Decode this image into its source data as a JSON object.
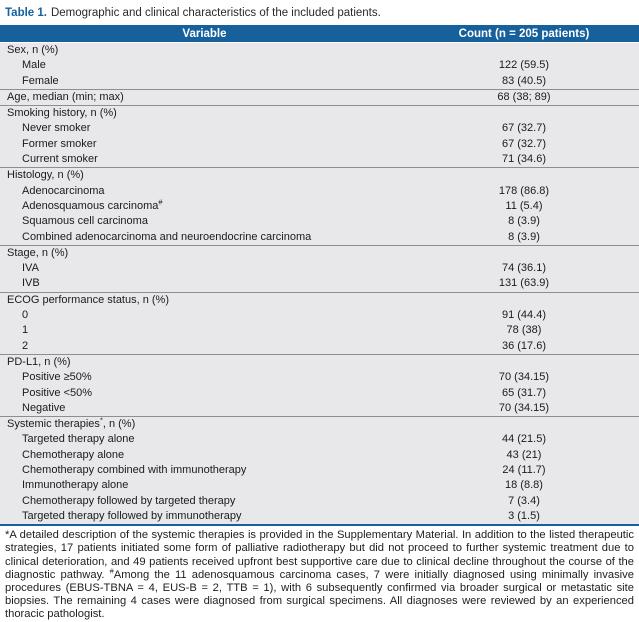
{
  "caption": {
    "label": "Table 1.",
    "text": "Demographic and clinical characteristics of the included patients."
  },
  "colors": {
    "header_bg": "#16609c",
    "caption_accent": "#16609c",
    "row_bg": "#e8e8ea",
    "divider": "#8e8e90",
    "table_bottom_border": "#16609c"
  },
  "table": {
    "columns": [
      "Variable",
      "Count (n = 205 patients)"
    ],
    "sections": [
      {
        "header": "Sex, n (%)",
        "value": "",
        "rows": [
          {
            "label": "Male",
            "value": "122 (59.5)"
          },
          {
            "label": "Female",
            "value": "83 (40.5)"
          }
        ]
      },
      {
        "header": "Age, median (min; max)",
        "value": "68 (38; 89)",
        "rows": []
      },
      {
        "header": "Smoking history, n (%)",
        "value": "",
        "rows": [
          {
            "label": "Never smoker",
            "value": "67 (32.7)"
          },
          {
            "label": "Former smoker",
            "value": "67 (32.7)"
          },
          {
            "label": "Current smoker",
            "value": "71 (34.6)"
          }
        ]
      },
      {
        "header": "Histology, n (%)",
        "value": "",
        "rows": [
          {
            "label": "Adenocarcinoma",
            "value": "178 (86.8)"
          },
          {
            "label": "Adenosquamous carcinoma",
            "sup": "#",
            "value": "11 (5.4)"
          },
          {
            "label": "Squamous cell carcinoma",
            "value": "8 (3.9)"
          },
          {
            "label": "Combined adenocarcinoma and neuroendocrine carcinoma",
            "value": "8 (3.9)"
          }
        ]
      },
      {
        "header": "Stage, n (%)",
        "value": "",
        "rows": [
          {
            "label": "IVA",
            "value": "74 (36.1)"
          },
          {
            "label": "IVB",
            "value": "131 (63.9)"
          }
        ]
      },
      {
        "header": "ECOG performance status, n (%)",
        "value": "",
        "rows": [
          {
            "label": "0",
            "value": "91 (44.4)"
          },
          {
            "label": "1",
            "value": "78 (38)"
          },
          {
            "label": "2",
            "value": "36 (17.6)"
          }
        ]
      },
      {
        "header": "PD-L1, n (%)",
        "value": "",
        "rows": [
          {
            "label": "Positive ≥50%",
            "value": "70 (34.15)"
          },
          {
            "label": "Positive <50%",
            "value": "65 (31.7)"
          },
          {
            "label": "Negative",
            "value": "70 (34.15)"
          }
        ]
      },
      {
        "header": "Systemic therapies",
        "header_sup": "*",
        "header_rest": ", n (%)",
        "value": "",
        "rows": [
          {
            "label": "Targeted therapy alone",
            "value": "44 (21.5)"
          },
          {
            "label": "Chemotherapy alone",
            "value": "43 (21)"
          },
          {
            "label": "Chemotherapy combined with immunotherapy",
            "value": "24 (11.7)"
          },
          {
            "label": "Immunotherapy alone",
            "value": "18 (8.8)"
          },
          {
            "label": "Chemotherapy followed by targeted therapy",
            "value": "7 (3.4)"
          },
          {
            "label": "Targeted therapy followed by immunotherapy",
            "value": "3 (1.5)"
          }
        ]
      }
    ]
  },
  "footnote": {
    "part1": "*A detailed description of the systemic therapies is provided in the Supplementary Material. In addition to the listed therapeutic strategies, 17 patients initiated some form of palliative radiotherapy but did not proceed to further systemic treatment due to clinical deterioration, and 49 patients received upfront best supportive care due to clinical decline throughout the course of the diagnostic pathway. ",
    "sup": "#",
    "part2": "Among the 11 adenosquamous carcinoma cases, 7 were initially diagnosed using minimally invasive procedures (EBUS-TBNA = 4, EUS-B = 2, TTB = 1), with 6 subsequently confirmed via broader surgical or metastatic site biopsies. The remaining 4 cases were diagnosed from surgical specimens. All diagnoses were reviewed by an experienced thoracic pathologist."
  }
}
